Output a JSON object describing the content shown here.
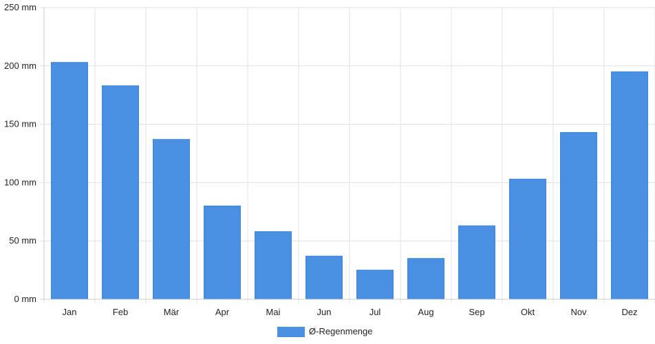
{
  "chart_data": {
    "type": "bar",
    "categories": [
      "Jan",
      "Feb",
      "Mär",
      "Apr",
      "Mai",
      "Jun",
      "Jul",
      "Aug",
      "Sep",
      "Okt",
      "Nov",
      "Dez"
    ],
    "series": [
      {
        "name": "Ø-Regenmenge",
        "color": "#4a90e2",
        "values": [
          203,
          183,
          137,
          80,
          58,
          37,
          25,
          35,
          63,
          103,
          143,
          195
        ]
      }
    ],
    "y_ticks": [
      "0 mm",
      "50 mm",
      "100 mm",
      "150 mm",
      "200 mm",
      "250 mm"
    ],
    "y_tick_values": [
      0,
      50,
      100,
      150,
      200,
      250
    ],
    "ylim": [
      0,
      250
    ],
    "y_unit": "mm",
    "grid": true,
    "legend_position": "bottom-center",
    "grid_color": "#e0e0e0",
    "axis_color": "#cccccc"
  }
}
